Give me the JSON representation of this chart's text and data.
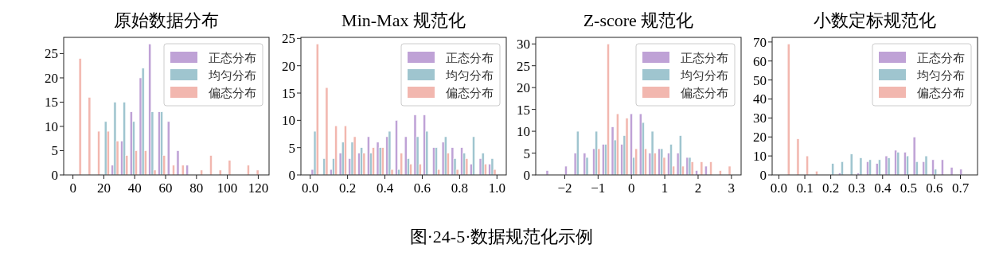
{
  "chart_data": [
    {
      "type": "histogram",
      "title": "原始数据分布",
      "legend": "top right",
      "xlim": [
        -6,
        127
      ],
      "ylim": [
        0,
        28.35
      ],
      "xticks": [
        0,
        20,
        40,
        60,
        80,
        100,
        120
      ],
      "yticks": [
        0,
        5,
        10,
        15,
        20,
        25
      ],
      "bins": [
        0,
        6.05,
        12.1,
        18.15,
        24.2,
        30.25,
        36.3,
        42.35,
        48.4,
        54.45,
        60.5,
        66.55,
        72.6,
        78.65,
        84.7,
        90.75,
        96.8,
        102.85,
        108.9,
        114.95,
        121
      ],
      "series": [
        {
          "name": "正态分布",
          "color": "#bfa2d6",
          "values": [
            0,
            0,
            0,
            0,
            2,
            7,
            13,
            20,
            27,
            13,
            11,
            5,
            2,
            0,
            0,
            0,
            0,
            0,
            0,
            0
          ]
        },
        {
          "name": "均匀分布",
          "color": "#9fc5cf",
          "values": [
            0,
            0,
            0,
            11,
            15,
            15,
            11,
            22,
            13,
            13,
            0,
            0,
            0,
            0,
            0,
            0,
            0,
            0,
            0,
            0
          ]
        },
        {
          "name": "偏态分布",
          "color": "#f2b7af",
          "values": [
            24,
            16,
            9,
            9,
            7,
            4,
            5,
            5,
            1,
            4,
            2,
            2,
            0,
            1,
            4,
            1,
            3,
            0,
            2,
            1
          ]
        }
      ],
      "annotations": [
        "图·24-5·数据规范化示例"
      ]
    },
    {
      "type": "histogram",
      "title": "Min-Max 规范化",
      "legend": "top right",
      "xlim": [
        -0.05,
        1.05
      ],
      "ylim": [
        0,
        25.2
      ],
      "xticks": [
        {
          "value": 0,
          "label": "0.0"
        },
        {
          "value": 0.2,
          "label": "0.2"
        },
        {
          "value": 0.4,
          "label": "0.4"
        },
        {
          "value": 0.6,
          "label": "0.6"
        },
        {
          "value": 0.8,
          "label": "0.8"
        },
        {
          "value": 1,
          "label": "1.0"
        }
      ],
      "yticks": [
        0,
        5,
        10,
        15,
        20,
        25
      ],
      "bins": [
        0,
        0.05,
        0.1,
        0.15,
        0.2,
        0.25,
        0.3,
        0.35,
        0.4,
        0.45,
        0.5,
        0.55,
        0.6,
        0.65,
        0.7,
        0.75,
        0.8,
        0.85,
        0.9,
        0.95,
        1
      ],
      "series": [
        {
          "name": "正态分布",
          "color": "#bfa2d6",
          "values": [
            1,
            0,
            1,
            4,
            3,
            4,
            7,
            6,
            7,
            10,
            7,
            11,
            11,
            5,
            6,
            5,
            5,
            2,
            3,
            2
          ]
        },
        {
          "name": "均匀分布",
          "color": "#9fc5cf",
          "values": [
            8,
            3,
            3,
            6,
            6,
            5,
            4,
            5,
            8,
            1,
            3,
            7,
            8,
            5,
            7,
            3,
            4,
            7,
            4,
            3
          ]
        },
        {
          "name": "偏态分布",
          "color": "#f2b7af",
          "values": [
            24,
            16,
            9,
            9,
            7,
            4,
            5,
            5,
            1,
            4,
            2,
            2,
            0,
            1,
            4,
            1,
            3,
            0,
            2,
            1
          ]
        }
      ]
    },
    {
      "type": "histogram",
      "title": "Z-score 规范化",
      "legend": "top right",
      "xlim": [
        -2.87,
        3.29
      ],
      "ylim": [
        0,
        31.5
      ],
      "xticks": [
        {
          "value": -2,
          "label": "−2"
        },
        {
          "value": -1,
          "label": "−1"
        },
        0,
        1,
        2,
        3
      ],
      "yticks": [
        0,
        5,
        10,
        15,
        20,
        25,
        30
      ],
      "bins": [
        -2.59,
        -2.31,
        -2.03,
        -1.75,
        -1.47,
        -1.19,
        -0.91,
        -0.63,
        -0.35,
        -0.07,
        0.21,
        0.49,
        0.77,
        1.05,
        1.33,
        1.61,
        1.89,
        2.17,
        2.45,
        2.73,
        3.01
      ],
      "series": [
        {
          "name": "正态分布",
          "color": "#bfa2d6",
          "values": [
            1,
            0,
            2,
            5,
            5,
            6,
            7,
            11,
            7,
            14,
            14,
            5,
            6,
            5,
            5,
            4,
            1,
            2,
            0,
            0
          ]
        },
        {
          "name": "均匀分布",
          "color": "#9fc5cf",
          "values": [
            0,
            0,
            0,
            10,
            4,
            10,
            7,
            8,
            9,
            4,
            12,
            10,
            6,
            7,
            9,
            4,
            0,
            0,
            0,
            0
          ]
        },
        {
          "name": "偏态分布",
          "color": "#f2b7af",
          "values": [
            0,
            0,
            0,
            0,
            0,
            6,
            30,
            14,
            13,
            6,
            6,
            5,
            4,
            2,
            2,
            3,
            3,
            3,
            1,
            2
          ]
        }
      ]
    },
    {
      "type": "histogram",
      "title": "小数定标规范化",
      "legend": "top right",
      "xlim": [
        -0.026,
        0.766
      ],
      "ylim": [
        0,
        72.45
      ],
      "xticks": [
        {
          "value": 0,
          "label": "0.0"
        },
        0.1,
        0.2,
        0.3,
        0.4,
        0.5,
        0.6,
        0.7
      ],
      "yticks": [
        0,
        10,
        20,
        30,
        40,
        50,
        60,
        70
      ],
      "bins": [
        0.01,
        0.046,
        0.082,
        0.118,
        0.154,
        0.19,
        0.226,
        0.262,
        0.298,
        0.334,
        0.37,
        0.406,
        0.442,
        0.478,
        0.514,
        0.55,
        0.586,
        0.622,
        0.658,
        0.694,
        0.73
      ],
      "series": [
        {
          "name": "正态分布",
          "color": "#bfa2d6",
          "values": [
            0,
            0,
            0,
            0,
            0,
            0,
            1,
            0,
            1,
            7,
            6,
            10,
            13,
            12,
            20,
            7,
            8,
            8,
            4,
            3
          ]
        },
        {
          "name": "均匀分布",
          "color": "#9fc5cf",
          "values": [
            0,
            0,
            0,
            0,
            0,
            6,
            7,
            11,
            9,
            8,
            8,
            9,
            12,
            10,
            7,
            10,
            3,
            0,
            0,
            0
          ]
        },
        {
          "name": "偏态分布",
          "color": "#f2b7af",
          "values": [
            69,
            19,
            10,
            2,
            0,
            0,
            0,
            0,
            0,
            0,
            0,
            0,
            0,
            0,
            0,
            0,
            0,
            0,
            0,
            0
          ]
        }
      ]
    }
  ]
}
